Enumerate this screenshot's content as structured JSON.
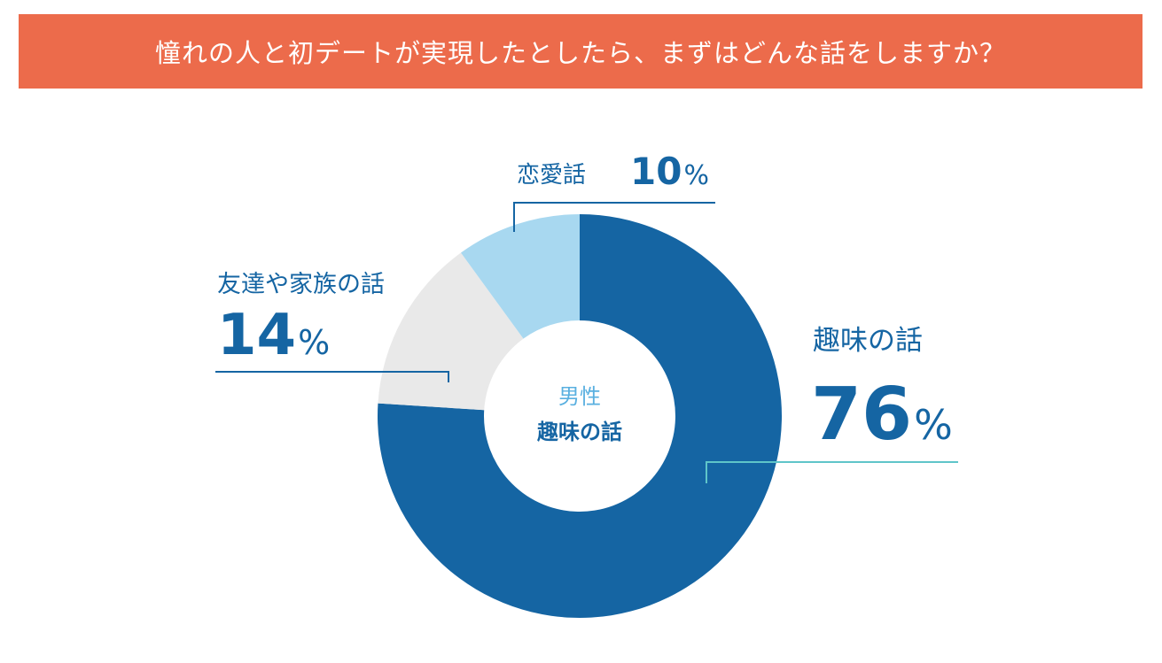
{
  "title": "憧れの人と初デートが実現したとしたら、まずはどんな話をしますか？",
  "center": {
    "group": "男性",
    "top_answer": "趣味の話"
  },
  "colors": {
    "title_bg": "#ec6b4b",
    "hobby": "#1565a3",
    "family": "#e9e9e9",
    "romance": "#a8d8f0",
    "center_group": "#5ab0e0",
    "label": "#1565a3",
    "leader_hobby": "#5fc5c9",
    "leader_other": "#1565a3"
  },
  "chart_data": {
    "type": "pie",
    "donut": true,
    "categories": [
      "趣味の話",
      "友達や家族の話",
      "恋愛話"
    ],
    "values": [
      76,
      14,
      10
    ],
    "unit": "%",
    "legend": "none"
  }
}
